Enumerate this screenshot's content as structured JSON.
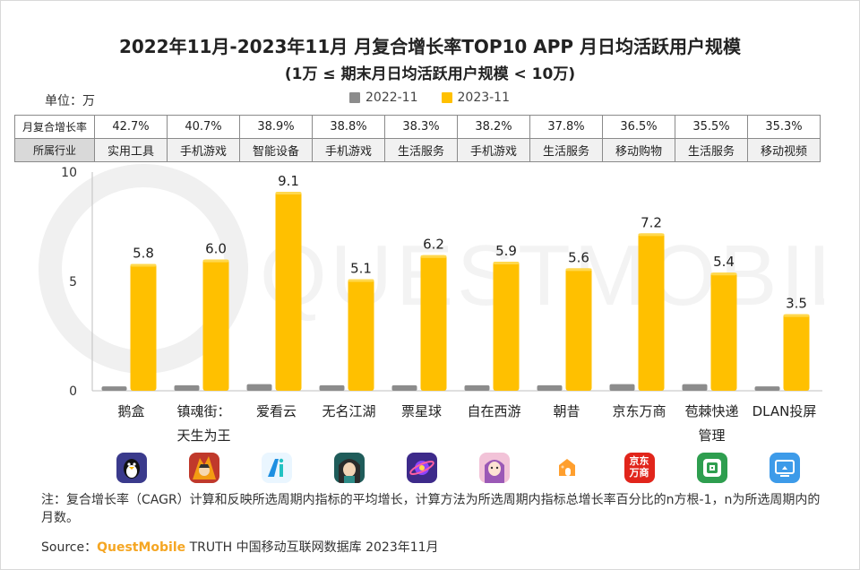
{
  "title": "2022年11月-2023年11月 月复合增长率TOP10 APP 月日均活跃用户规模",
  "subtitle": "(1万 ≤ 期末月日均活跃用户规模 < 10万)",
  "unit_label": "单位：万",
  "legend": [
    {
      "name": "2022-11",
      "color": "#8c8c8c"
    },
    {
      "name": "2023-11",
      "color": "#ffc000"
    }
  ],
  "table": {
    "row1_header": "月复合增长率",
    "row2_header": "所属行业",
    "growth_rates": [
      "42.7%",
      "40.7%",
      "38.9%",
      "38.8%",
      "38.3%",
      "38.2%",
      "37.8%",
      "36.5%",
      "35.5%",
      "35.3%"
    ],
    "industries": [
      "实用工具",
      "手机游戏",
      "智能设备",
      "手机游戏",
      "生活服务",
      "手机游戏",
      "生活服务",
      "移动购物",
      "生活服务",
      "移动视频"
    ]
  },
  "chart_data": {
    "type": "bar",
    "categories": [
      "鹅盒",
      "镇魂街：天生为王",
      "爱看云",
      "无名江湖",
      "票星球",
      "自在西游",
      "朝昔",
      "京东万商",
      "苞棘快递管理",
      "DLAN投屏"
    ],
    "category_lines": [
      [
        "鹅盒"
      ],
      [
        "镇魂街：",
        "天生为王"
      ],
      [
        "爱看云"
      ],
      [
        "无名江湖"
      ],
      [
        "票星球"
      ],
      [
        "自在西游"
      ],
      [
        "朝昔"
      ],
      [
        "京东万商"
      ],
      [
        "苞棘快递",
        "管理"
      ],
      [
        "DLAN投屏"
      ]
    ],
    "series": [
      {
        "name": "2022-11",
        "values": [
          0.2,
          0.25,
          0.3,
          0.25,
          0.25,
          0.25,
          0.25,
          0.3,
          0.3,
          0.2
        ],
        "color": "#8c8c8c"
      },
      {
        "name": "2023-11",
        "values": [
          5.8,
          6.0,
          9.1,
          5.1,
          6.2,
          5.9,
          5.6,
          7.2,
          5.4,
          3.5
        ],
        "color": "#ffc000"
      }
    ],
    "value_labels": [
      "5.8",
      "6.0",
      "9.1",
      "5.1",
      "6.2",
      "5.9",
      "5.6",
      "7.2",
      "5.4",
      "3.5"
    ],
    "yticks": [
      "0",
      "5",
      "10"
    ],
    "ylim": [
      0,
      10
    ]
  },
  "app_icons": [
    {
      "name": "penguin-icon",
      "bg": "#3a3a8c"
    },
    {
      "name": "hero-icon",
      "bg": "#c0392b"
    },
    {
      "name": "ai-letter-icon",
      "bg": "#eaf6ff"
    },
    {
      "name": "character-icon",
      "bg": "#1f5c5a"
    },
    {
      "name": "planet-icon",
      "bg": "#3d2a8a"
    },
    {
      "name": "girl-icon",
      "bg": "#f2c3d8"
    },
    {
      "name": "house-icon",
      "bg": "#ffffff"
    },
    {
      "name": "jd-icon",
      "bg": "#e1251b"
    },
    {
      "name": "package-icon",
      "bg": "#2e9e4f"
    },
    {
      "name": "screen-icon",
      "bg": "#3d9be9"
    }
  ],
  "jd_icon_text": [
    "京东",
    "万商"
  ],
  "note": "注：复合增长率（CAGR）计算和反映所选周期内指标的平均增长，计算方法为所选周期内指标总增长率百分比的n方根-1，n为所选周期内的月数。",
  "source": {
    "prefix": "Source：",
    "brand": "QuestMobile",
    "rest": " TRUTH 中国移动互联网数据库 2023年11月"
  },
  "watermark_text": "QUESTMOBILE"
}
